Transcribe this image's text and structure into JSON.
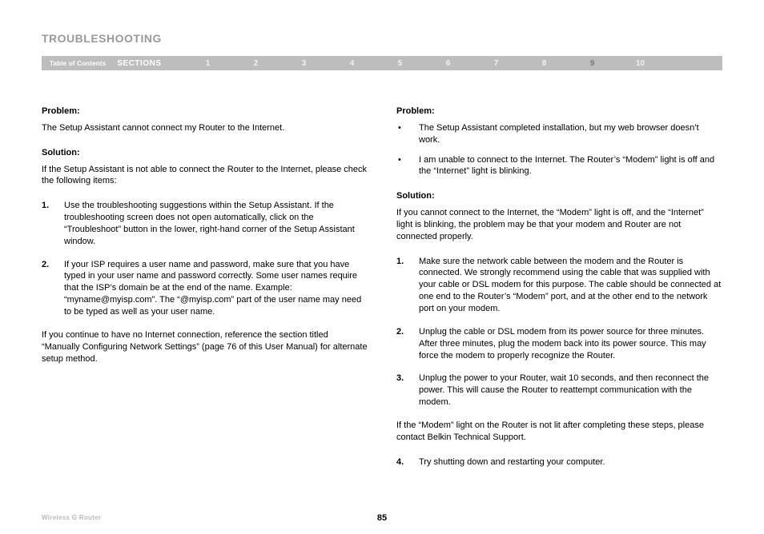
{
  "title": "TROUBLESHOOTING",
  "nav": {
    "toc": "Table of Contents",
    "sections": "SECTIONS",
    "nums": [
      "1",
      "2",
      "3",
      "4",
      "5",
      "6",
      "7",
      "8",
      "9",
      "10"
    ],
    "active_index": 8
  },
  "left": {
    "problem_label": "Problem:",
    "problem_text": "The Setup Assistant cannot connect my Router to the Internet.",
    "solution_label": "Solution:",
    "solution_intro": "If the Setup Assistant is not able to connect the Router to the Internet, please check the following items:",
    "items": [
      {
        "n": "1.",
        "t": "Use the troubleshooting suggestions within the Setup Assistant. If the troubleshooting screen does not open automatically, click on the “Troubleshoot” button in the lower, right-hand corner of the Setup Assistant window."
      },
      {
        "n": "2.",
        "t": "If your ISP requires a user name and password, make sure that you have typed in your user name and password correctly. Some user names require that the ISP’s domain be at the end of the name. Example: “myname@myisp.com”. The “@myisp.com” part of the user name may need to be typed as well as your user name."
      }
    ],
    "outro": "If you continue to have no Internet connection, reference the section titled “Manually Configuring Network Settings” (page 76 of this User Manual) for alternate setup method."
  },
  "right": {
    "problem_label": "Problem:",
    "bullets": [
      "The Setup Assistant completed installation, but my web browser doesn’t work.",
      "I am unable to connect to the Internet. The Router’s “Modem” light is off and the “Internet” light is blinking."
    ],
    "solution_label": "Solution:",
    "solution_intro": "If you cannot connect to the Internet, the “Modem” light is off, and the “Internet” light is blinking, the problem may be that your modem and Router are not connected properly.",
    "items": [
      {
        "n": "1.",
        "t": "Make sure the network cable between the modem and the Router is connected. We strongly recommend using the cable that was supplied with your cable or DSL modem for this purpose. The cable should be connected at one end to the Router’s “Modem” port, and at the other end to the network port on your modem."
      },
      {
        "n": "2.",
        "t": "Unplug the cable or DSL modem from its power source for three minutes. After three minutes, plug the modem back into its power source. This may force the modem to properly recognize the Router."
      },
      {
        "n": "3.",
        "t": "Unplug the power to your Router, wait 10 seconds, and then reconnect the power. This will cause the Router to reattempt communication with the modem."
      }
    ],
    "outro": "If the “Modem” light on the Router is not lit after completing these steps, please contact Belkin Technical Support.",
    "item4": {
      "n": "4.",
      "t": "Try shutting down and restarting your computer."
    }
  },
  "footer": {
    "product": "Wireless G Router",
    "page": "85"
  },
  "colors": {
    "title": "#999999",
    "navbar_bg": "#bdbdbd",
    "nav_text": "#f2f2f2",
    "nav_active": "#777777",
    "footer_text": "#bbbbbb"
  }
}
